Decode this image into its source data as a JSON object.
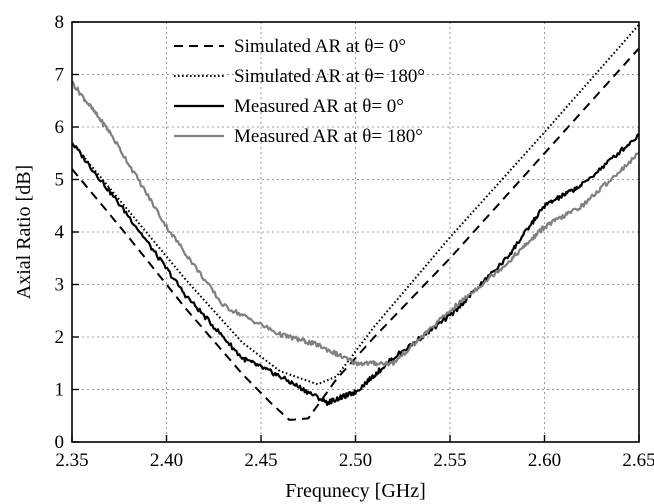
{
  "chart_data": {
    "type": "line",
    "title": "",
    "xlabel": "Frequnecy [GHz]",
    "ylabel": "Axial Ratio [dB]",
    "xlim": [
      2.35,
      2.65
    ],
    "ylim": [
      0,
      8
    ],
    "xticks": [
      "2.35",
      "2.40",
      "2.45",
      "2.50",
      "2.55",
      "2.60",
      "2.65"
    ],
    "yticks": [
      "0",
      "1",
      "2",
      "3",
      "4",
      "5",
      "6",
      "7",
      "8"
    ],
    "grid": true,
    "legend_position": "top-center",
    "series": [
      {
        "name": "Simulated AR at θ= 0°",
        "style": "dashed",
        "color": "#000000",
        "x": [
          2.35,
          2.38,
          2.41,
          2.44,
          2.455,
          2.465,
          2.475,
          2.49,
          2.51,
          2.55,
          2.6,
          2.65
        ],
        "y": [
          5.2,
          3.9,
          2.55,
          1.3,
          0.75,
          0.42,
          0.45,
          1.2,
          2.0,
          3.5,
          5.5,
          7.5
        ]
      },
      {
        "name": "Simulated AR at θ= 180°",
        "style": "dotted",
        "color": "#000000",
        "x": [
          2.35,
          2.38,
          2.41,
          2.44,
          2.46,
          2.48,
          2.49,
          2.51,
          2.55,
          2.6,
          2.65
        ],
        "y": [
          5.7,
          4.4,
          3.1,
          1.9,
          1.35,
          1.1,
          1.25,
          2.2,
          3.9,
          5.9,
          7.95
        ]
      },
      {
        "name": "Measured AR at θ= 0°",
        "style": "solid",
        "color": "#000000",
        "x": [
          2.35,
          2.38,
          2.41,
          2.44,
          2.46,
          2.485,
          2.5,
          2.52,
          2.55,
          2.58,
          2.6,
          2.62,
          2.65
        ],
        "y": [
          5.7,
          4.3,
          2.8,
          1.6,
          1.25,
          0.75,
          0.95,
          1.6,
          2.4,
          3.5,
          4.5,
          4.9,
          5.85
        ]
      },
      {
        "name": "Measured AR at θ= 180°",
        "style": "solid",
        "color": "#808080",
        "x": [
          2.35,
          2.37,
          2.4,
          2.43,
          2.46,
          2.48,
          2.5,
          2.52,
          2.55,
          2.58,
          2.6,
          2.62,
          2.65
        ],
        "y": [
          6.85,
          5.9,
          4.1,
          2.6,
          2.05,
          1.85,
          1.5,
          1.5,
          2.5,
          3.4,
          4.1,
          4.5,
          5.5
        ]
      }
    ]
  }
}
